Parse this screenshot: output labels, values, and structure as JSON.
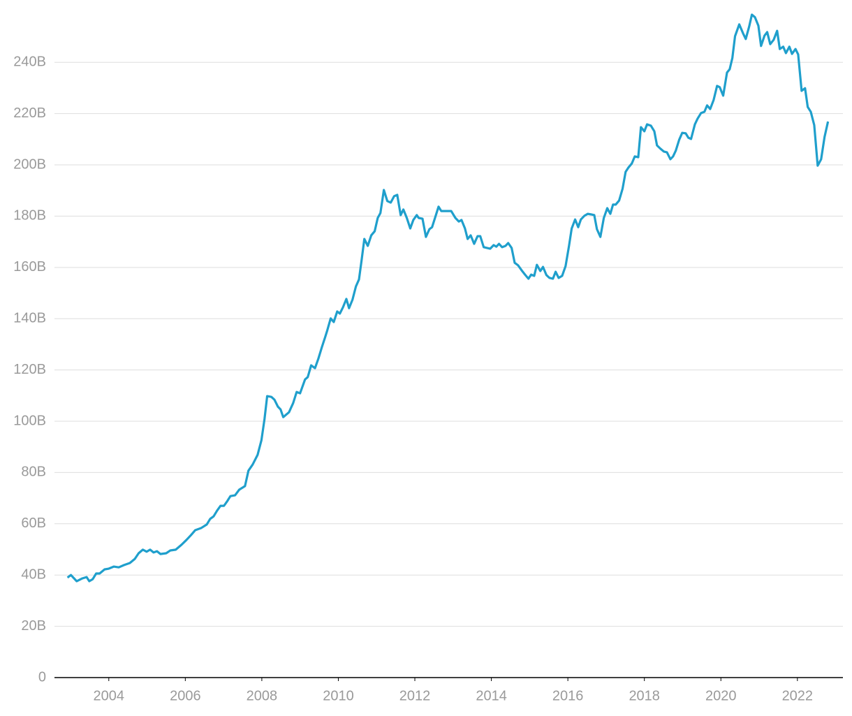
{
  "chart_data": {
    "type": "line",
    "color": "#1f9fcc",
    "grid": true,
    "xlim": [
      2002.58,
      2023.19
    ],
    "ylim": [
      0,
      262
    ],
    "xticks": [
      2004,
      2006,
      2008,
      2010,
      2012,
      2014,
      2016,
      2018,
      2020,
      2022
    ],
    "yticks": [
      0,
      {
        "value": 20,
        "label": "20B"
      },
      {
        "value": 40,
        "label": "40B"
      },
      {
        "value": 60,
        "label": "60B"
      },
      {
        "value": 80,
        "label": "80B"
      },
      {
        "value": 100,
        "label": "100B"
      },
      {
        "value": 120,
        "label": "120B"
      },
      {
        "value": 140,
        "label": "140B"
      },
      {
        "value": 160,
        "label": "160B"
      },
      {
        "value": 180,
        "label": "180B"
      },
      {
        "value": 200,
        "label": "200B"
      },
      {
        "value": 220,
        "label": "220B"
      },
      {
        "value": 240,
        "label": "240B"
      }
    ],
    "x": [
      2002.92,
      2003.01,
      2003.16,
      2003.31,
      2003.42,
      2003.49,
      2003.58,
      2003.67,
      2003.76,
      2003.89,
      2004.0,
      2004.13,
      2004.26,
      2004.4,
      2004.55,
      2004.68,
      2004.78,
      2004.89,
      2004.99,
      2005.08,
      2005.17,
      2005.26,
      2005.35,
      2005.5,
      2005.61,
      2005.75,
      2005.9,
      2006.03,
      2006.15,
      2006.26,
      2006.41,
      2006.56,
      2006.65,
      2006.74,
      2006.83,
      2006.92,
      2007.01,
      2007.1,
      2007.18,
      2007.3,
      2007.41,
      2007.56,
      2007.65,
      2007.76,
      2007.89,
      2007.99,
      2008.07,
      2008.14,
      2008.25,
      2008.33,
      2008.42,
      2008.49,
      2008.56,
      2008.71,
      2008.82,
      2008.91,
      2009.0,
      2009.13,
      2009.2,
      2009.29,
      2009.39,
      2009.48,
      2009.57,
      2009.66,
      2009.71,
      2009.8,
      2009.88,
      2009.97,
      2010.04,
      2010.12,
      2010.21,
      2010.28,
      2010.37,
      2010.46,
      2010.54,
      2010.61,
      2010.68,
      2010.77,
      2010.86,
      2010.95,
      2011.03,
      2011.1,
      2011.19,
      2011.28,
      2011.37,
      2011.46,
      2011.54,
      2011.63,
      2011.7,
      2011.79,
      2011.88,
      2011.96,
      2012.05,
      2012.1,
      2012.2,
      2012.29,
      2012.38,
      2012.45,
      2012.54,
      2012.62,
      2012.69,
      2012.84,
      2012.95,
      2013.06,
      2013.15,
      2013.22,
      2013.31,
      2013.38,
      2013.46,
      2013.55,
      2013.64,
      2013.71,
      2013.8,
      2013.97,
      2014.06,
      2014.13,
      2014.2,
      2014.28,
      2014.37,
      2014.44,
      2014.53,
      2014.61,
      2014.7,
      2014.79,
      2014.88,
      2014.97,
      2015.04,
      2015.12,
      2015.19,
      2015.28,
      2015.35,
      2015.44,
      2015.52,
      2015.61,
      2015.68,
      2015.76,
      2015.85,
      2015.94,
      2016.03,
      2016.1,
      2016.19,
      2016.27,
      2016.34,
      2016.43,
      2016.52,
      2016.6,
      2016.69,
      2016.76,
      2016.85,
      2016.94,
      2017.03,
      2017.11,
      2017.18,
      2017.25,
      2017.34,
      2017.43,
      2017.51,
      2017.58,
      2017.67,
      2017.75,
      2017.84,
      2017.91,
      2018.0,
      2018.07,
      2018.17,
      2018.26,
      2018.33,
      2018.42,
      2018.51,
      2018.59,
      2018.68,
      2018.75,
      2018.82,
      2018.91,
      2018.99,
      2019.08,
      2019.15,
      2019.22,
      2019.32,
      2019.39,
      2019.48,
      2019.57,
      2019.64,
      2019.72,
      2019.81,
      2019.9,
      2019.97,
      2020.06,
      2020.16,
      2020.23,
      2020.3,
      2020.37,
      2020.48,
      2020.58,
      2020.65,
      2020.74,
      2020.81,
      2020.89,
      2020.98,
      2021.05,
      2021.14,
      2021.21,
      2021.29,
      2021.38,
      2021.47,
      2021.54,
      2021.63,
      2021.7,
      2021.79,
      2021.86,
      2021.95,
      2022.02,
      2022.11,
      2022.2,
      2022.27,
      2022.35,
      2022.44,
      2022.53,
      2022.62,
      2022.71,
      2022.8
    ],
    "values": [
      39,
      40,
      37.6,
      38.7,
      39.2,
      37.6,
      38.4,
      40.6,
      40.6,
      42.2,
      42.5,
      43.3,
      43,
      43.9,
      44.7,
      46.3,
      48.5,
      49.9,
      49.1,
      49.9,
      48.8,
      49.3,
      48.2,
      48.5,
      49.6,
      49.9,
      51.8,
      53.7,
      55.6,
      57.5,
      58.3,
      59.7,
      61.9,
      62.9,
      65.1,
      67,
      67,
      68.9,
      70.8,
      71.1,
      73.3,
      74.7,
      80.7,
      83.1,
      86.9,
      92.6,
      100.8,
      109.8,
      109.5,
      108.4,
      105.7,
      104.6,
      101.6,
      103.5,
      107.1,
      111.4,
      110.9,
      116.3,
      117.2,
      121.8,
      120.7,
      124.5,
      128.9,
      133,
      135.4,
      140.1,
      138.7,
      142.8,
      142,
      144.4,
      147.7,
      144.1,
      147.4,
      152.6,
      155.3,
      163,
      171.1,
      168.4,
      172.5,
      174.1,
      179.3,
      181.2,
      190.2,
      185.9,
      185.3,
      187.8,
      188.3,
      180.4,
      182.6,
      179.3,
      175.2,
      178.5,
      180.4,
      179.3,
      179,
      171.9,
      174.9,
      175.7,
      179.9,
      183.7,
      182,
      182,
      182,
      179.3,
      177.9,
      178.5,
      175.2,
      171.1,
      172.5,
      169.2,
      172.2,
      172.2,
      167.9,
      167.3,
      168.7,
      168.1,
      169.2,
      167.9,
      168.4,
      169.5,
      167.6,
      161.8,
      160.8,
      158.9,
      157.2,
      155.6,
      157.2,
      156.7,
      161,
      158.6,
      160.2,
      157,
      155.9,
      155.6,
      158.3,
      155.9,
      156.7,
      160.5,
      168.4,
      175.2,
      178.7,
      175.7,
      178.7,
      180.1,
      180.9,
      180.7,
      180.4,
      174.9,
      171.9,
      179.3,
      183.1,
      180.9,
      184.5,
      184.5,
      186.1,
      190.7,
      197.3,
      198.9,
      200.5,
      203.3,
      203,
      214.7,
      213.1,
      215.8,
      215.3,
      213.1,
      207.6,
      206.3,
      205.2,
      204.9,
      202.2,
      203.3,
      205.5,
      209.8,
      212.5,
      212.3,
      210.6,
      210.1,
      215.8,
      218,
      220.2,
      220.7,
      223.2,
      221.8,
      225.3,
      230.8,
      230.3,
      227,
      236,
      237.3,
      241.7,
      250.2,
      254.8,
      251.3,
      249.1,
      254,
      258.6,
      257.6,
      254.3,
      246.4,
      250.4,
      251.8,
      247.1,
      248.8,
      252.3,
      245.2,
      246.1,
      243.6,
      246.1,
      243.3,
      245.2,
      243.1,
      228.9,
      229.9,
      222.6,
      220.7,
      215.5,
      199.7,
      202.2,
      210.9,
      216.9
    ]
  }
}
